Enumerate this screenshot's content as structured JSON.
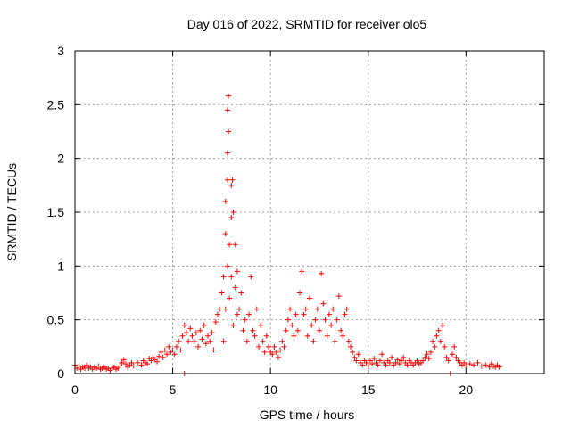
{
  "chart_data": {
    "type": "scatter",
    "title": "Day 016 of 2022, SRMTID for receiver olo5",
    "xlabel": "GPS time / hours",
    "ylabel": "SRMTID / TECUs",
    "xlim": [
      0,
      24
    ],
    "ylim": [
      0,
      3
    ],
    "xticks": [
      0,
      5,
      10,
      15,
      20
    ],
    "yticks": [
      0,
      0.5,
      1,
      1.5,
      2,
      2.5,
      3
    ],
    "xtick_labels": [
      "0",
      "5",
      "10",
      "15",
      "20"
    ],
    "ytick_labels": [
      "0",
      "0.5",
      "1",
      "1.5",
      "2",
      "2.5",
      "3"
    ],
    "grid": true,
    "marker": "+",
    "color": "#ff0000",
    "series": [
      {
        "name": "SRMTID",
        "points": [
          [
            0.0,
            0.08
          ],
          [
            0.1,
            0.05
          ],
          [
            0.2,
            0.07
          ],
          [
            0.3,
            0.04
          ],
          [
            0.4,
            0.06
          ],
          [
            0.5,
            0.05
          ],
          [
            0.6,
            0.08
          ],
          [
            0.7,
            0.05
          ],
          [
            0.8,
            0.06
          ],
          [
            0.9,
            0.04
          ],
          [
            1.0,
            0.06
          ],
          [
            1.1,
            0.05
          ],
          [
            1.2,
            0.07
          ],
          [
            1.3,
            0.04
          ],
          [
            1.4,
            0.05
          ],
          [
            1.5,
            0.06
          ],
          [
            1.6,
            0.04
          ],
          [
            1.7,
            0.05
          ],
          [
            1.8,
            0.03
          ],
          [
            1.9,
            0.05
          ],
          [
            2.0,
            0.06
          ],
          [
            2.1,
            0.04
          ],
          [
            2.2,
            0.05
          ],
          [
            2.3,
            0.07
          ],
          [
            2.4,
            0.1
          ],
          [
            2.5,
            0.13
          ],
          [
            2.6,
            0.09
          ],
          [
            2.7,
            0.06
          ],
          [
            2.8,
            0.08
          ],
          [
            2.9,
            0.1
          ],
          [
            3.0,
            0.07
          ],
          [
            3.2,
            0.1
          ],
          [
            3.4,
            0.08
          ],
          [
            3.5,
            0.12
          ],
          [
            3.6,
            0.1
          ],
          [
            3.7,
            0.09
          ],
          [
            3.8,
            0.14
          ],
          [
            3.9,
            0.12
          ],
          [
            4.0,
            0.15
          ],
          [
            4.1,
            0.13
          ],
          [
            4.2,
            0.11
          ],
          [
            4.3,
            0.16
          ],
          [
            4.4,
            0.2
          ],
          [
            4.5,
            0.15
          ],
          [
            4.6,
            0.22
          ],
          [
            4.7,
            0.18
          ],
          [
            4.8,
            0.25
          ],
          [
            4.9,
            0.2
          ],
          [
            5.0,
            0.22
          ],
          [
            5.1,
            0.18
          ],
          [
            5.2,
            0.25
          ],
          [
            5.3,
            0.3
          ],
          [
            5.4,
            0.22
          ],
          [
            5.5,
            0.35
          ],
          [
            5.6,
            0.45
          ],
          [
            5.6,
            0.0
          ],
          [
            5.7,
            0.38
          ],
          [
            5.8,
            0.3
          ],
          [
            5.9,
            0.42
          ],
          [
            6.0,
            0.35
          ],
          [
            6.1,
            0.3
          ],
          [
            6.2,
            0.38
          ],
          [
            6.3,
            0.25
          ],
          [
            6.4,
            0.4
          ],
          [
            6.5,
            0.32
          ],
          [
            6.6,
            0.45
          ],
          [
            6.7,
            0.28
          ],
          [
            6.8,
            0.35
          ],
          [
            6.9,
            0.3
          ],
          [
            7.0,
            0.38
          ],
          [
            7.1,
            0.22
          ],
          [
            7.2,
            0.48
          ],
          [
            7.3,
            0.55
          ],
          [
            7.4,
            0.6
          ],
          [
            7.5,
            0.75
          ],
          [
            7.6,
            0.9
          ],
          [
            7.6,
            0.3
          ],
          [
            7.7,
            1.3
          ],
          [
            7.7,
            1.6
          ],
          [
            7.7,
            0.6
          ],
          [
            7.8,
            1.8
          ],
          [
            7.8,
            2.05
          ],
          [
            7.8,
            2.45
          ],
          [
            7.8,
            1.0
          ],
          [
            7.85,
            2.58
          ],
          [
            7.85,
            2.25
          ],
          [
            7.9,
            1.2
          ],
          [
            7.9,
            0.7
          ],
          [
            8.0,
            1.75
          ],
          [
            8.0,
            1.45
          ],
          [
            8.0,
            0.9
          ],
          [
            8.05,
            1.8
          ],
          [
            8.1,
            1.5
          ],
          [
            8.1,
            0.45
          ],
          [
            8.2,
            1.2
          ],
          [
            8.2,
            0.8
          ],
          [
            8.3,
            0.95
          ],
          [
            8.3,
            0.55
          ],
          [
            8.4,
            0.6
          ],
          [
            8.5,
            0.75
          ],
          [
            8.6,
            0.4
          ],
          [
            8.7,
            0.5
          ],
          [
            8.8,
            0.3
          ],
          [
            8.9,
            0.55
          ],
          [
            9.0,
            0.9
          ],
          [
            9.1,
            0.4
          ],
          [
            9.2,
            0.35
          ],
          [
            9.3,
            0.6
          ],
          [
            9.4,
            0.25
          ],
          [
            9.5,
            0.45
          ],
          [
            9.6,
            0.3
          ],
          [
            9.7,
            0.2
          ],
          [
            9.8,
            0.35
          ],
          [
            9.9,
            0.25
          ],
          [
            10.0,
            0.2
          ],
          [
            10.1,
            0.18
          ],
          [
            10.2,
            0.25
          ],
          [
            10.3,
            0.2
          ],
          [
            10.4,
            0.15
          ],
          [
            10.5,
            0.22
          ],
          [
            10.6,
            0.3
          ],
          [
            10.7,
            0.25
          ],
          [
            10.8,
            0.4
          ],
          [
            10.9,
            0.5
          ],
          [
            11.0,
            0.6
          ],
          [
            11.1,
            0.45
          ],
          [
            11.2,
            0.35
          ],
          [
            11.3,
            0.55
          ],
          [
            11.4,
            0.4
          ],
          [
            11.5,
            0.75
          ],
          [
            11.6,
            0.95
          ],
          [
            11.7,
            0.55
          ],
          [
            11.8,
            0.6
          ],
          [
            11.9,
            0.35
          ],
          [
            12.0,
            0.7
          ],
          [
            12.1,
            0.45
          ],
          [
            12.2,
            0.3
          ],
          [
            12.3,
            0.5
          ],
          [
            12.4,
            0.6
          ],
          [
            12.5,
            0.4
          ],
          [
            12.6,
            0.93
          ],
          [
            12.7,
            0.65
          ],
          [
            12.8,
            0.5
          ],
          [
            12.9,
            0.35
          ],
          [
            13.0,
            0.55
          ],
          [
            13.1,
            0.45
          ],
          [
            13.2,
            0.6
          ],
          [
            13.3,
            0.3
          ],
          [
            13.4,
            0.5
          ],
          [
            13.5,
            0.72
          ],
          [
            13.6,
            0.4
          ],
          [
            13.7,
            0.35
          ],
          [
            13.8,
            0.55
          ],
          [
            13.9,
            0.6
          ],
          [
            14.0,
            0.3
          ],
          [
            14.1,
            0.25
          ],
          [
            14.2,
            0.2
          ],
          [
            14.3,
            0.15
          ],
          [
            14.4,
            0.12
          ],
          [
            14.5,
            0.18
          ],
          [
            14.6,
            0.1
          ],
          [
            14.7,
            0.08
          ],
          [
            14.8,
            0.12
          ],
          [
            14.9,
            0.1
          ],
          [
            15.0,
            0.07
          ],
          [
            15.1,
            0.12
          ],
          [
            15.2,
            0.09
          ],
          [
            15.3,
            0.14
          ],
          [
            15.4,
            0.1
          ],
          [
            15.5,
            0.08
          ],
          [
            15.6,
            0.12
          ],
          [
            15.7,
            0.18
          ],
          [
            15.8,
            0.1
          ],
          [
            15.9,
            0.08
          ],
          [
            16.0,
            0.12
          ],
          [
            16.1,
            0.1
          ],
          [
            16.2,
            0.15
          ],
          [
            16.3,
            0.08
          ],
          [
            16.4,
            0.1
          ],
          [
            16.5,
            0.13
          ],
          [
            16.6,
            0.09
          ],
          [
            16.7,
            0.12
          ],
          [
            16.8,
            0.15
          ],
          [
            16.9,
            0.1
          ],
          [
            17.0,
            0.08
          ],
          [
            17.1,
            0.12
          ],
          [
            17.2,
            0.1
          ],
          [
            17.3,
            0.08
          ],
          [
            17.4,
            0.1
          ],
          [
            17.5,
            0.12
          ],
          [
            17.6,
            0.09
          ],
          [
            17.7,
            0.1
          ],
          [
            17.8,
            0.12
          ],
          [
            17.9,
            0.15
          ],
          [
            18.0,
            0.18
          ],
          [
            18.1,
            0.14
          ],
          [
            18.2,
            0.2
          ],
          [
            18.3,
            0.3
          ],
          [
            18.4,
            0.25
          ],
          [
            18.5,
            0.35
          ],
          [
            18.6,
            0.4
          ],
          [
            18.7,
            0.3
          ],
          [
            18.8,
            0.45
          ],
          [
            18.9,
            0.25
          ],
          [
            19.0,
            0.15
          ],
          [
            19.1,
            0.12
          ],
          [
            19.2,
            0.0
          ],
          [
            19.3,
            0.18
          ],
          [
            19.4,
            0.25
          ],
          [
            19.5,
            0.15
          ],
          [
            19.6,
            0.12
          ],
          [
            19.7,
            0.1
          ],
          [
            19.8,
            0.08
          ],
          [
            19.9,
            0.1
          ],
          [
            20.0,
            0.07
          ],
          [
            20.2,
            0.09
          ],
          [
            20.4,
            0.08
          ],
          [
            20.6,
            0.1
          ],
          [
            20.8,
            0.07
          ],
          [
            21.0,
            0.08
          ],
          [
            21.2,
            0.06
          ],
          [
            21.3,
            0.09
          ],
          [
            21.4,
            0.07
          ],
          [
            21.5,
            0.06
          ],
          [
            21.6,
            0.08
          ],
          [
            21.7,
            0.06
          ]
        ]
      }
    ]
  }
}
